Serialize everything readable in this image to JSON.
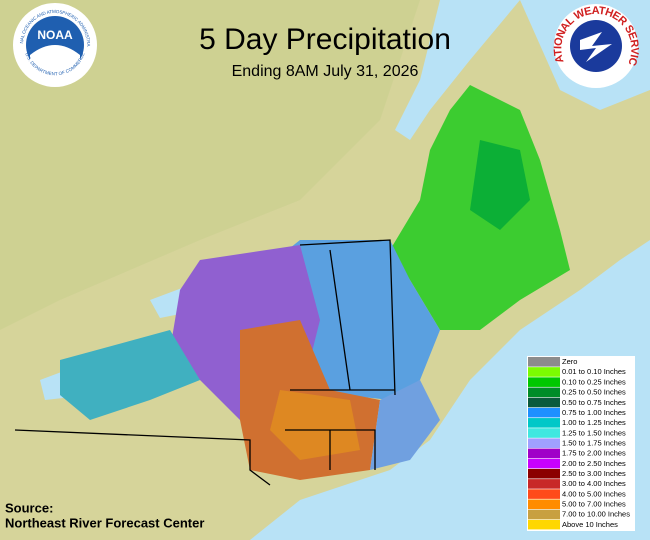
{
  "header": {
    "title": "5 Day Precipitation",
    "subtitle": "Ending  8AM July 31, 2026"
  },
  "logos": {
    "noaa": {
      "label": "NOAA",
      "ring_top": "NATIONAL OCEANIC AND ATMOSPHERIC ADMINISTRATION",
      "ring_bottom": "U.S. DEPARTMENT OF COMMERCE"
    },
    "nws": {
      "ring": "NATIONAL WEATHER SERVICE"
    }
  },
  "legend": {
    "items": [
      {
        "label": "Zero",
        "color": "#8c8c8c"
      },
      {
        "label": "0.01 to 0.10 Inches",
        "color": "#7cfc00"
      },
      {
        "label": "0.10 to 0.25 Inches",
        "color": "#00c800"
      },
      {
        "label": "0.25 to 0.50 Inches",
        "color": "#008c28"
      },
      {
        "label": "0.50 to 0.75 Inches",
        "color": "#0a5a3c"
      },
      {
        "label": "0.75 to 1.00 Inches",
        "color": "#1e90ff"
      },
      {
        "label": "1.00 to 1.25 Inches",
        "color": "#00c8c8"
      },
      {
        "label": "1.25 to 1.50 Inches",
        "color": "#40e8e0"
      },
      {
        "label": "1.50 to 1.75 Inches",
        "color": "#a0a0ff"
      },
      {
        "label": "1.75 to 2.00 Inches",
        "color": "#a000c8"
      },
      {
        "label": "2.00 to 2.50 Inches",
        "color": "#c800ff"
      },
      {
        "label": "2.50 to 3.00 Inches",
        "color": "#8b0000"
      },
      {
        "label": "3.00 to 4.00 Inches",
        "color": "#c82828"
      },
      {
        "label": "4.00 to 5.00 Inches",
        "color": "#ff4a1a"
      },
      {
        "label": "5.00 to 7.00 Inches",
        "color": "#ff8c00"
      },
      {
        "label": "7.00 to 10.00 Inches",
        "color": "#c8a040"
      },
      {
        "label": "Above 10 Inches",
        "color": "#ffd700"
      }
    ]
  },
  "source": {
    "label": "Source:",
    "agency": "Northeast River Forecast Center"
  }
}
